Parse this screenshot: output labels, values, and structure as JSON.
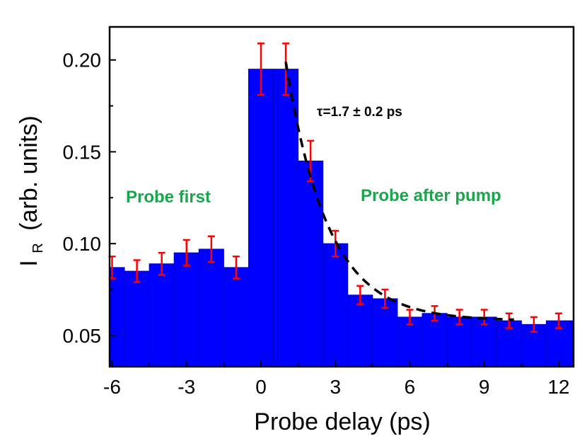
{
  "chart_data": {
    "type": "bar",
    "title": "",
    "xlabel": "Probe delay (ps)",
    "ylabel": {
      "main": "I",
      "subscript": "R",
      "rest": "(arb. units)"
    },
    "xlim": [
      -6.1,
      12.6
    ],
    "ylim": [
      0.033,
      0.218
    ],
    "xticks": [
      -6,
      -3,
      0,
      3,
      6,
      9,
      12
    ],
    "xtick_labels": [
      "-6",
      "-3",
      "0",
      "3",
      "6",
      "9",
      "12"
    ],
    "yticks": [
      0.05,
      0.1,
      0.15,
      0.2
    ],
    "ytick_labels": [
      "0.05",
      "0.10",
      "0.15",
      "0.20"
    ],
    "bin_width": 1.0,
    "grid": false,
    "colors": {
      "bars": "#0000ff",
      "bar_edge": "#0000c8",
      "errorbars": "#ff0000",
      "fit": "#000000",
      "annotation": "#1aa64b"
    },
    "bars": [
      {
        "x": -6,
        "value": 0.087,
        "error": 0.006
      },
      {
        "x": -5,
        "value": 0.085,
        "error": 0.006
      },
      {
        "x": -4,
        "value": 0.089,
        "error": 0.006
      },
      {
        "x": -3,
        "value": 0.095,
        "error": 0.007
      },
      {
        "x": -2,
        "value": 0.097,
        "error": 0.007
      },
      {
        "x": -1,
        "value": 0.087,
        "error": 0.006
      },
      {
        "x": 0,
        "value": 0.195,
        "error": 0.014
      },
      {
        "x": 1,
        "value": 0.195,
        "error": 0.014
      },
      {
        "x": 2,
        "value": 0.145,
        "error": 0.011
      },
      {
        "x": 3,
        "value": 0.1,
        "error": 0.007
      },
      {
        "x": 4,
        "value": 0.072,
        "error": 0.005
      },
      {
        "x": 5,
        "value": 0.07,
        "error": 0.005
      },
      {
        "x": 6,
        "value": 0.06,
        "error": 0.004
      },
      {
        "x": 7,
        "value": 0.062,
        "error": 0.004
      },
      {
        "x": 8,
        "value": 0.06,
        "error": 0.004
      },
      {
        "x": 9,
        "value": 0.06,
        "error": 0.004
      },
      {
        "x": 10,
        "value": 0.058,
        "error": 0.004
      },
      {
        "x": 11,
        "value": 0.056,
        "error": 0.004
      },
      {
        "x": 12,
        "value": 0.058,
        "error": 0.004
      },
      {
        "x": 13,
        "value": 0.058,
        "error": 0.0
      }
    ],
    "fit": {
      "type": "exponential decay",
      "x_start": 1.0,
      "x_end": 10.2,
      "baseline": 0.058,
      "amplitude": 0.141,
      "tau": 1.7
    },
    "annotations": [
      {
        "text": "τ=1.7 ± 0.2 ps",
        "color": "#000000"
      },
      {
        "text": "Probe first",
        "color": "#1aa64b"
      },
      {
        "text": "Probe after pump",
        "color": "#1aa64b"
      }
    ]
  }
}
